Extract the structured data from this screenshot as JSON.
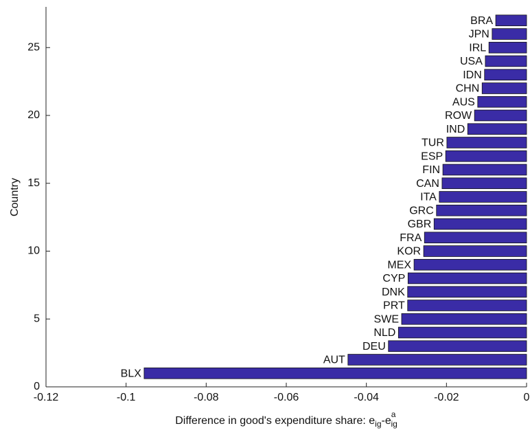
{
  "chart_data": {
    "type": "hbar",
    "ylabel": "Country",
    "xlabel": {
      "text": "Difference in good's expenditure share: e",
      "sub1": "ig",
      "mid": "-e",
      "sup": "a",
      "sub2": "ig"
    },
    "y": [
      1,
      2,
      3,
      4,
      5,
      6,
      7,
      8,
      9,
      10,
      11,
      12,
      13,
      14,
      15,
      16,
      17,
      18,
      19,
      20,
      21,
      22,
      23,
      24,
      25,
      26,
      27
    ],
    "labels": [
      "BLX",
      "AUT",
      "DEU",
      "NLD",
      "SWE",
      "PRT",
      "DNK",
      "CYP",
      "MEX",
      "KOR",
      "FRA",
      "GBR",
      "GRC",
      "ITA",
      "CAN",
      "FIN",
      "ESP",
      "TUR",
      "IND",
      "ROW",
      "AUS",
      "CHN",
      "IDN",
      "USA",
      "IRL",
      "JPN",
      "BRA"
    ],
    "values": [
      -0.0955,
      -0.0446,
      -0.0345,
      -0.032,
      -0.0312,
      -0.0297,
      -0.0297,
      -0.0296,
      -0.0281,
      -0.0257,
      -0.0255,
      -0.0231,
      -0.0225,
      -0.0218,
      -0.0211,
      -0.0209,
      -0.0202,
      -0.0199,
      -0.0147,
      -0.013,
      -0.0122,
      -0.0111,
      -0.0105,
      -0.0103,
      -0.0094,
      -0.0086,
      -0.0077
    ],
    "color": "#3a2ca6",
    "xlim": [
      -0.12,
      0
    ],
    "xticks": [
      -0.12,
      -0.1,
      -0.08,
      -0.06,
      -0.04,
      -0.02,
      0
    ],
    "ylim": [
      0,
      28
    ],
    "yticks": [
      0,
      5,
      10,
      15,
      20,
      25
    ]
  }
}
